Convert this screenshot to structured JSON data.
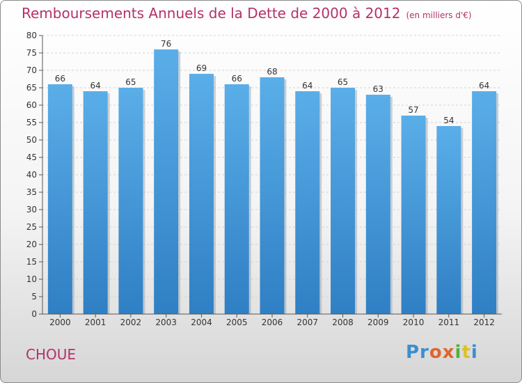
{
  "chart_data": {
    "type": "bar",
    "title": "Remboursements Annuels de la Dette de 2000 à 2012",
    "unit_note": "(en milliers d'€)",
    "categories": [
      "2000",
      "2001",
      "2002",
      "2003",
      "2004",
      "2005",
      "2006",
      "2007",
      "2008",
      "2009",
      "2010",
      "2011",
      "2012"
    ],
    "values": [
      66,
      64,
      65,
      76,
      69,
      66,
      68,
      64,
      65,
      63,
      57,
      54,
      64
    ],
    "ylim": [
      0,
      80
    ],
    "yticks": [
      0,
      5,
      10,
      15,
      20,
      25,
      30,
      35,
      40,
      45,
      50,
      55,
      60,
      65,
      70,
      75,
      80
    ],
    "xlabel": "",
    "ylabel": "",
    "grid": true,
    "bar_color": "#4f9fe0"
  },
  "footer": {
    "commune": "CHOUE",
    "logo": [
      "Pr",
      "o",
      "x",
      "i",
      "t",
      "i"
    ]
  },
  "colors": {
    "title": "#b5306a",
    "bar_top": "#5aaee8",
    "bar_bottom": "#2f7fc4"
  }
}
